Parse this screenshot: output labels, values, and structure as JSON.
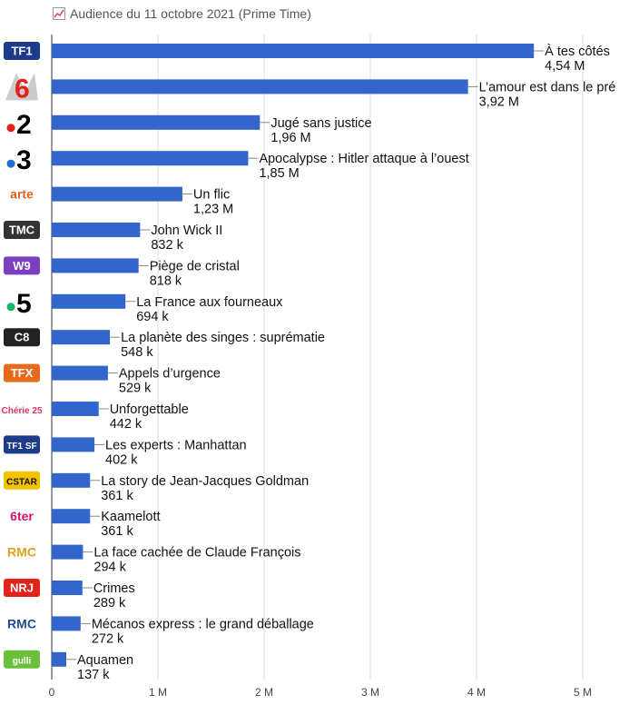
{
  "title": "Audience du 11 octobre 2021 (Prime Time)",
  "colors": {
    "bar": "#3366cc",
    "grid": "#dddddd",
    "axis": "#333333"
  },
  "chart_data": {
    "type": "bar",
    "orientation": "horizontal",
    "title": "Audience du 11 octobre 2021 (Prime Time)",
    "xlim": [
      0,
      5200000
    ],
    "xticks": [
      0,
      1000000,
      2000000,
      3000000,
      4000000,
      5000000
    ],
    "xtick_labels": [
      "0",
      "1 M",
      "2 M",
      "3 M",
      "4 M",
      "5 M"
    ],
    "grid": true,
    "legend": "none",
    "categories": [
      "TF1",
      "M6",
      "France 2",
      "France 3",
      "Arte",
      "TMC",
      "W9",
      "France 5",
      "C8",
      "TFX",
      "Chérie 25",
      "TF1 Séries Films",
      "CStar",
      "6ter",
      "RMC Story",
      "NRJ 12",
      "RMC Découverte",
      "Gulli"
    ],
    "programs": [
      "À tes côtés",
      "L’amour est dans le pré",
      "Jugé sans justice",
      "Apocalypse : Hitler attaque à l’ouest",
      "Un flic",
      "John Wick II",
      "Piège de cristal",
      "La France aux fourneaux",
      "La planète des singes : suprématie",
      "Appels d’urgence",
      "Unforgettable",
      "Les experts : Manhattan",
      "La story de Jean-Jacques Goldman",
      "Kaamelott",
      "La face cachée de Claude François",
      "Crimes",
      "Mécanos express : le grand déballage",
      "Aquamen"
    ],
    "values": [
      4540000,
      3920000,
      1960000,
      1850000,
      1230000,
      832000,
      818000,
      694000,
      548000,
      529000,
      442000,
      402000,
      361000,
      361000,
      294000,
      289000,
      272000,
      137000
    ],
    "value_labels": [
      "4,54 M",
      "3,92 M",
      "1,96 M",
      "1,85 M",
      "1,23 M",
      "832 k",
      "818 k",
      "694 k",
      "548 k",
      "529 k",
      "442 k",
      "402 k",
      "361 k",
      "361 k",
      "294 k",
      "289 k",
      "272 k",
      "137 k"
    ]
  },
  "logos": [
    {
      "text": "TF1",
      "icon": "tf1-logo",
      "bg": "#1e3a8a",
      "fg": "#ffffff"
    },
    {
      "text": "6",
      "icon": "m6-logo",
      "bg": "#ffffff",
      "fg": "#e2231a"
    },
    {
      "text": "2",
      "icon": "france2-logo",
      "bg": "#ffffff",
      "fg": "#000000",
      "dot": "#e2231a"
    },
    {
      "text": "3",
      "icon": "france3-logo",
      "bg": "#ffffff",
      "fg": "#000000",
      "dot": "#1f6fd1"
    },
    {
      "text": "arte",
      "icon": "arte-logo",
      "bg": "#ffffff",
      "fg": "#e0621c"
    },
    {
      "text": "TMC",
      "icon": "tmc-logo",
      "bg": "#333333",
      "fg": "#ffffff"
    },
    {
      "text": "W9",
      "icon": "w9-logo",
      "bg": "#7b3fbf",
      "fg": "#ffffff"
    },
    {
      "text": "5",
      "icon": "france5-logo",
      "bg": "#ffffff",
      "fg": "#000000",
      "dot": "#18b26b"
    },
    {
      "text": "C8",
      "icon": "c8-logo",
      "bg": "#222222",
      "fg": "#ffffff"
    },
    {
      "text": "TFX",
      "icon": "tfx-logo",
      "bg": "#e86a1c",
      "fg": "#ffffff"
    },
    {
      "text": "Chérie 25",
      "icon": "cherie25-logo",
      "bg": "#ffffff",
      "fg": "#d6336c"
    },
    {
      "text": "TF1 SF",
      "icon": "tf1-series-films-logo",
      "bg": "#1e3a8a",
      "fg": "#ffffff"
    },
    {
      "text": "CSTAR",
      "icon": "cstar-logo",
      "bg": "#f2c300",
      "fg": "#111111"
    },
    {
      "text": "6ter",
      "icon": "6ter-logo",
      "bg": "#ffffff",
      "fg": "#d1156b"
    },
    {
      "text": "RMC",
      "icon": "rmc-story-logo",
      "bg": "#ffffff",
      "fg": "#e0a21c"
    },
    {
      "text": "NRJ",
      "icon": "nrj12-logo",
      "bg": "#e2231a",
      "fg": "#ffffff"
    },
    {
      "text": "RMC",
      "icon": "rmc-decouverte-logo",
      "bg": "#ffffff",
      "fg": "#1f4e8c"
    },
    {
      "text": "gulli",
      "icon": "gulli-logo",
      "bg": "#6cbf3a",
      "fg": "#ffffff"
    }
  ]
}
